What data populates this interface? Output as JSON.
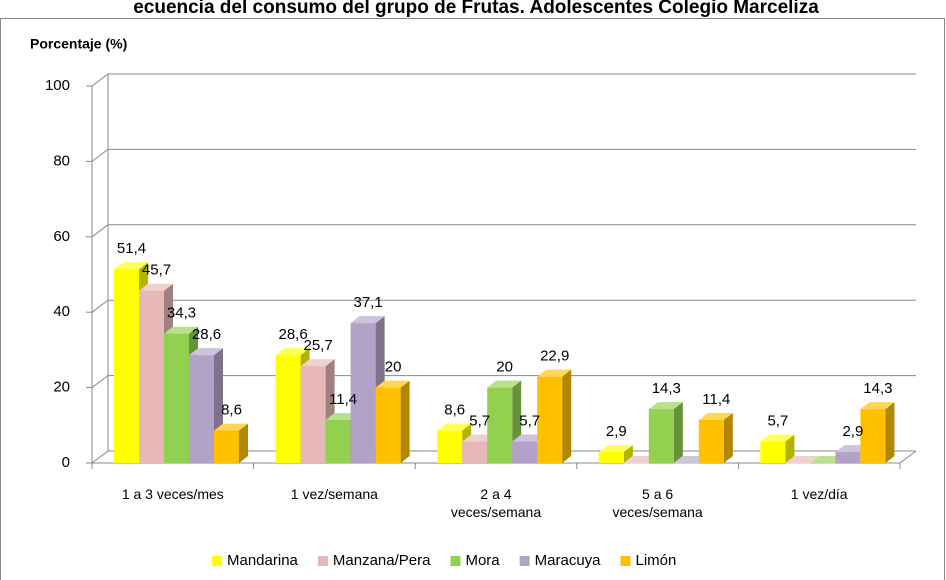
{
  "chart_data": {
    "type": "bar3d",
    "title": "ecuencia del consumo del grupo de Frutas. Adolescentes Colegio Marceliza",
    "y_label": "Porcentaje (%)",
    "categories": [
      "1 a 3 veces/mes",
      "1 vez/semana",
      "2 a 4 veces/semana",
      "5 a 6 veces/semana",
      "1 vez/día"
    ],
    "series": [
      {
        "name": "Mandarina",
        "color": "#ffff00",
        "values": [
          51.4,
          28.6,
          8.6,
          2.9,
          5.7
        ],
        "value_labels": [
          "51,4",
          "28,6",
          "8,6",
          "2,9",
          "5,7"
        ]
      },
      {
        "name": "Manzana/Pera",
        "color": "#e6b8b7",
        "values": [
          45.7,
          25.7,
          5.7,
          0,
          0
        ],
        "value_labels": [
          "45,7",
          "25,7",
          "5,7",
          null,
          null
        ]
      },
      {
        "name": "Mora",
        "color": "#92d050",
        "values": [
          34.3,
          11.4,
          20,
          14.3,
          0
        ],
        "value_labels": [
          "34,3",
          "11,4",
          "20",
          "14,3",
          null
        ]
      },
      {
        "name": "Maracuya",
        "color": "#b3a2c7",
        "values": [
          28.6,
          37.1,
          5.7,
          0,
          2.9
        ],
        "value_labels": [
          "28,6",
          "37,1",
          "5,7",
          null,
          "2,9"
        ]
      },
      {
        "name": "Limón",
        "color": "#ffc000",
        "values": [
          8.6,
          20,
          22.9,
          11.4,
          14.3
        ],
        "value_labels": [
          "8,6",
          "20",
          "22,9",
          "11,4",
          "14,3"
        ]
      }
    ],
    "ylim": [
      0,
      100
    ],
    "yticks": [
      0,
      20,
      40,
      60,
      80,
      100
    ],
    "grid": true,
    "legend": "bottom"
  }
}
